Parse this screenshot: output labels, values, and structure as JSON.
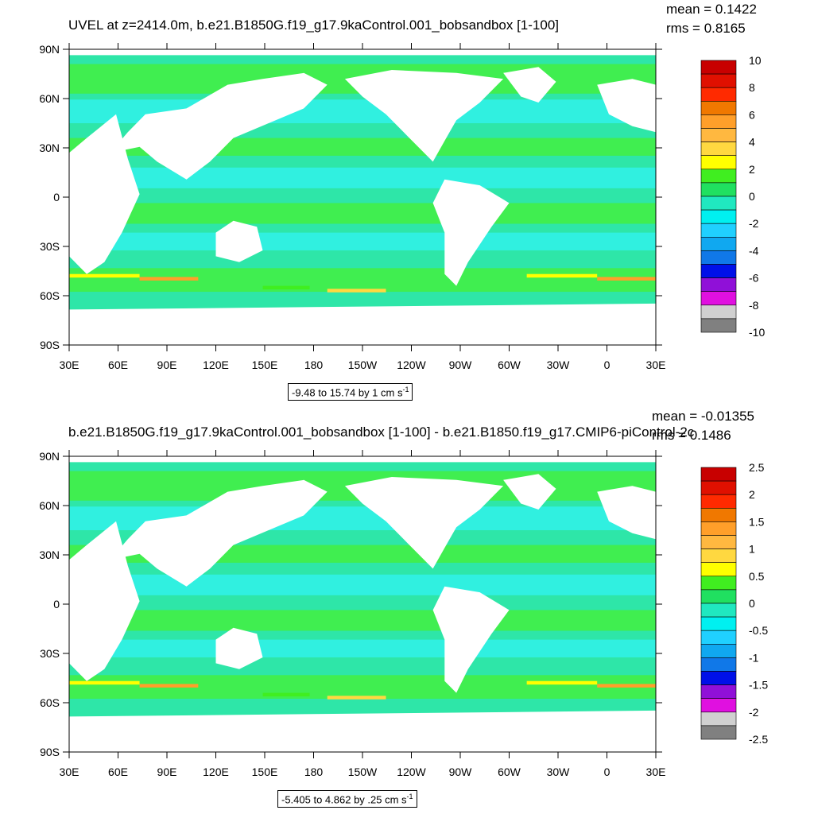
{
  "panels": [
    {
      "title": "UVEL at z=2414.0m, b.e21.B1850G.f19_g17.9kaControl.001_bobsandbox [1-100]",
      "mean_text": "mean = 0.1422",
      "rms_text": "rms = 0.8165",
      "lat_labels": [
        "90N",
        "60N",
        "30N",
        "0",
        "30S",
        "60S",
        "90S"
      ],
      "lon_labels": [
        "30E",
        "60E",
        "90E",
        "120E",
        "150E",
        "180",
        "150W",
        "120W",
        "90W",
        "60W",
        "30W",
        "0",
        "30E"
      ],
      "colorbar_labels": [
        "10",
        "8",
        "6",
        "4",
        "2",
        "0",
        "-2",
        "-4",
        "-6",
        "-8",
        "-10"
      ],
      "info_text": "-9.48 to 15.74 by 1 cm s",
      "info_unit_exp": "-1"
    },
    {
      "title": "b.e21.B1850G.f19_g17.9kaControl.001_bobsandbox [1-100] - b.e21.B1850.f19_g17.CMIP6-piControl-2c",
      "mean_text": "mean = -0.01355",
      "rms_text": "rms = 0.1486",
      "lat_labels": [
        "90N",
        "60N",
        "30N",
        "0",
        "30S",
        "60S",
        "90S"
      ],
      "lon_labels": [
        "30E",
        "60E",
        "90E",
        "120E",
        "150E",
        "180",
        "150W",
        "120W",
        "90W",
        "60W",
        "30W",
        "0",
        "30E"
      ],
      "colorbar_labels": [
        "2.5",
        "2",
        "1.5",
        "1",
        "0.5",
        "0",
        "-0.5",
        "-1",
        "-1.5",
        "-2",
        "-2.5"
      ],
      "info_text": "-5.405 to 4.862 by .25 cm s",
      "info_unit_exp": "-1"
    }
  ],
  "colors": {
    "palette": [
      "#c80000",
      "#e01000",
      "#ff2a00",
      "#f07800",
      "#ff9f2a",
      "#ffb840",
      "#ffd840",
      "#ffff00",
      "#40ee20",
      "#20e060",
      "#20e8c0",
      "#00f0f0",
      "#20d0ff",
      "#10a8f0",
      "#1078e8",
      "#0010e8",
      "#9010d8",
      "#e010e0",
      "#d0d0d0",
      "#808080"
    ],
    "ocean_main": "#2ee6a8",
    "ocean_cyan": "#30f0e0",
    "ocean_green": "#40ee50",
    "land": "#ffffff"
  }
}
